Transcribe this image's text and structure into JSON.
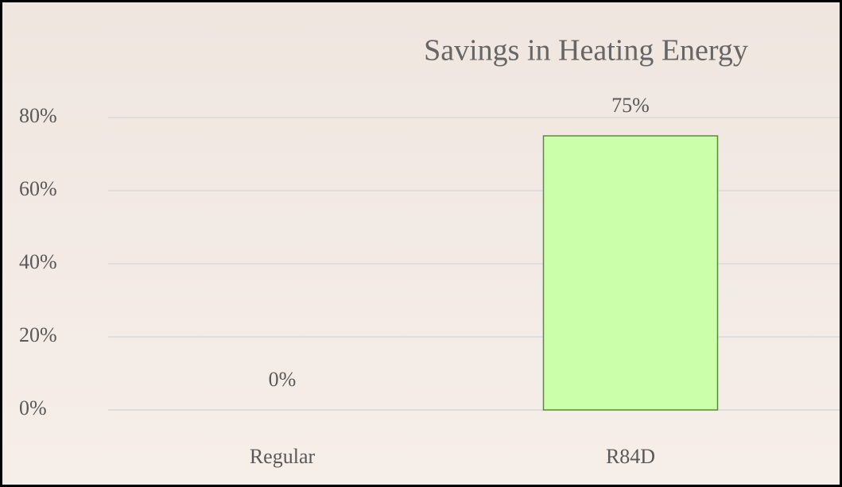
{
  "chart_data": {
    "type": "bar",
    "title": "Savings in Heating Energy",
    "categories": [
      "Regular",
      "R84D"
    ],
    "values": [
      0,
      75
    ],
    "value_labels": [
      "0%",
      "75%"
    ],
    "color": "#ccffaa",
    "edge_color": "#5a8a3a",
    "ylim": [
      0,
      80
    ],
    "yticks": [
      {
        "value": 0,
        "label": "0%"
      },
      {
        "value": 20,
        "label": "20%"
      },
      {
        "value": 40,
        "label": "40%"
      },
      {
        "value": 60,
        "label": "60%"
      },
      {
        "value": 80,
        "label": "80%"
      }
    ],
    "grid": true
  }
}
